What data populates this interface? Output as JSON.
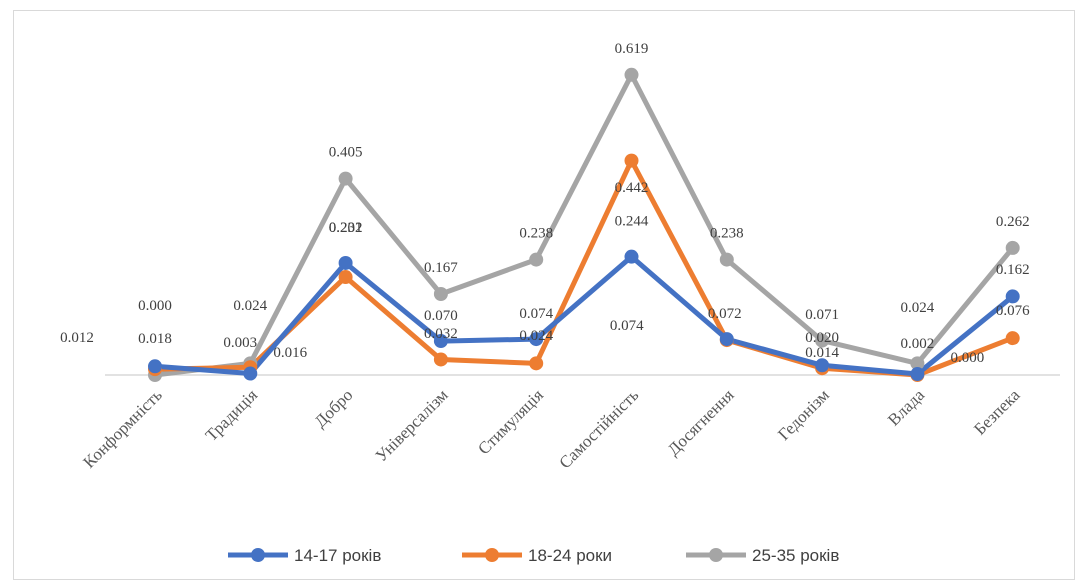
{
  "chart_data": {
    "type": "line",
    "categories": [
      "Конформність",
      "Традиція",
      "Добро",
      "Універсалізм",
      "Стимуляція",
      "Самостійність",
      "Досягнення",
      "Гедонізм",
      "Влада",
      "Безпека"
    ],
    "series": [
      {
        "name": "14-17 років",
        "color": "#4472c4",
        "values": [
          0.018,
          0.003,
          0.231,
          0.07,
          0.074,
          0.244,
          0.074,
          0.02,
          0.002,
          0.162
        ],
        "labels": [
          "0.018",
          "0.003",
          "0.231",
          "0.070",
          "0.074",
          "0.244",
          "0.074",
          "0.020",
          "0.002",
          "0.162"
        ]
      },
      {
        "name": "18-24 роки",
        "color": "#ed7d31",
        "values": [
          0.012,
          0.016,
          0.202,
          0.032,
          0.024,
          0.442,
          0.072,
          0.014,
          0.0,
          0.076
        ],
        "labels": [
          "0.012",
          "0.016",
          "0.202",
          "0.032",
          "0.024",
          "0.442",
          "0.072",
          "0.014",
          "0.000",
          "0.076"
        ]
      },
      {
        "name": "25-35 років",
        "color": "#a5a5a5",
        "values": [
          0.0,
          0.024,
          0.405,
          0.167,
          0.238,
          0.619,
          0.238,
          0.071,
          0.024,
          0.262
        ],
        "labels": [
          "0.000",
          "0.024",
          "0.405",
          "0.167",
          "0.238",
          "0.619",
          "0.238",
          "0.071",
          "0.024",
          "0.262"
        ]
      }
    ],
    "ylim": [
      0,
      0.65
    ],
    "grid": false,
    "legend": "bottom",
    "title": "",
    "xlabel": "",
    "ylabel": ""
  }
}
